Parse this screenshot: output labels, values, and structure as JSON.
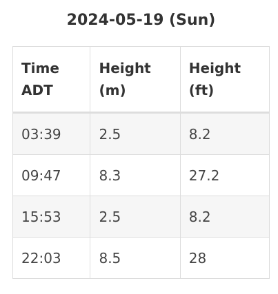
{
  "title": "2024-05-19 (Sun)",
  "table": {
    "headers": [
      [
        "Time",
        "ADT"
      ],
      [
        "Height",
        "(m)"
      ],
      [
        "Height",
        "(ft)"
      ]
    ],
    "rows": [
      [
        "03:39",
        "2.5",
        "8.2"
      ],
      [
        "09:47",
        "8.3",
        "27.2"
      ],
      [
        "15:53",
        "2.5",
        "8.2"
      ],
      [
        "22:03",
        "8.5",
        "28"
      ]
    ]
  }
}
